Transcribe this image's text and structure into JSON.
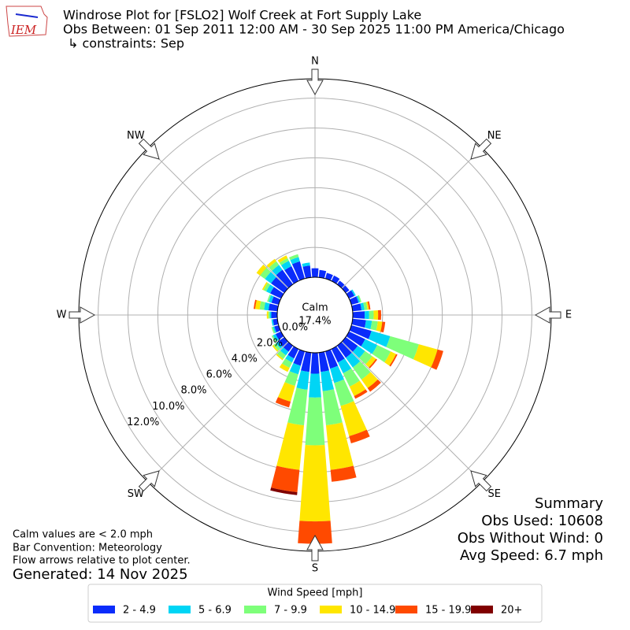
{
  "chart_data": {
    "type": "windrose",
    "logo": "IEM",
    "title": "Windrose Plot for [FSLO2] Wolf Creek at Fort Supply Lake",
    "subtitle": "Obs Between: 01 Sep 2011 12:00 AM - 30 Sep 2025 11:00 PM America/Chicago",
    "constraints": "↳ constraints: Sep",
    "calm_label": "Calm",
    "calm_value": 17.4,
    "calm_value_label": "17.4%",
    "x": [
      0,
      10,
      20,
      30,
      40,
      50,
      60,
      70,
      80,
      90,
      100,
      110,
      120,
      130,
      140,
      150,
      160,
      170,
      180,
      190,
      200,
      210,
      220,
      230,
      240,
      250,
      260,
      270,
      280,
      290,
      300,
      310,
      320,
      330,
      340,
      350
    ],
    "xlim": [
      0,
      360
    ],
    "xticks": [
      {
        "value": 0,
        "label": "N"
      },
      {
        "value": 45,
        "label": "NE"
      },
      {
        "value": 90,
        "label": "E"
      },
      {
        "value": 135,
        "label": "SE"
      },
      {
        "value": 180,
        "label": "S"
      },
      {
        "value": 225,
        "label": "SW"
      },
      {
        "value": 270,
        "label": "W"
      },
      {
        "value": 315,
        "label": "NW"
      }
    ],
    "ylim": [
      0,
      13.3
    ],
    "yticks": [
      {
        "value": 0,
        "label": "0.0%"
      },
      {
        "value": 2,
        "label": "2.0%"
      },
      {
        "value": 4,
        "label": "4.0%"
      },
      {
        "value": 6,
        "label": "6.0%"
      },
      {
        "value": 8,
        "label": "8.0%"
      },
      {
        "value": 10,
        "label": "10.0%"
      },
      {
        "value": 12,
        "label": "12.0%"
      }
    ],
    "grid": true,
    "legend_title": "Wind Speed [mph]",
    "series": [
      {
        "name": "2 - 4.9",
        "color": "#0a2cfb",
        "values": [
          0.6,
          0.5,
          0.4,
          0.4,
          0.3,
          0.3,
          0.4,
          0.5,
          0.6,
          0.8,
          0.9,
          1.4,
          1.2,
          1.0,
          1.0,
          1.0,
          1.2,
          1.3,
          1.4,
          1.3,
          1.0,
          0.7,
          0.5,
          0.5,
          0.4,
          0.3,
          0.3,
          0.4,
          0.6,
          0.5,
          0.8,
          1.1,
          1.2,
          1.1,
          1.2,
          0.8
        ]
      },
      {
        "name": "5 - 6.9",
        "color": "#00d5f5",
        "values": [
          0,
          0,
          0,
          0,
          0,
          0,
          0.1,
          0.1,
          0.2,
          0.3,
          0.4,
          1.3,
          0.9,
          0.6,
          0.8,
          0.8,
          1.0,
          1.3,
          1.6,
          1.2,
          0.6,
          0.3,
          0.3,
          0.2,
          0.2,
          0.1,
          0.1,
          0.1,
          0.3,
          0.2,
          0.3,
          0.5,
          0.4,
          0.4,
          0.3,
          0.2
        ]
      },
      {
        "name": "7 - 9.9",
        "color": "#7eff7a",
        "values": [
          0,
          0,
          0,
          0,
          0,
          0,
          0,
          0.1,
          0.2,
          0.3,
          0.4,
          2.0,
          1.0,
          0.6,
          1.0,
          1.0,
          1.6,
          2.3,
          3.2,
          2.4,
          0.8,
          0.4,
          0.3,
          0.2,
          0.1,
          0.1,
          0,
          0.1,
          0.3,
          0.1,
          0.2,
          0.4,
          0.3,
          0.2,
          0.2,
          0
        ]
      },
      {
        "name": "10 - 14.9",
        "color": "#ffe600",
        "values": [
          0,
          0,
          0,
          0,
          0,
          0,
          0,
          0,
          0.1,
          0.3,
          0.3,
          1.3,
          0.4,
          0.3,
          0.7,
          0.7,
          2.1,
          3.0,
          5.1,
          3.0,
          1.1,
          0.3,
          0.1,
          0.1,
          0,
          0,
          0,
          0.1,
          0.3,
          0,
          0.1,
          0.3,
          0.2,
          0.2,
          0,
          0
        ]
      },
      {
        "name": "15 - 19.9",
        "color": "#ff4a00",
        "values": [
          0,
          0,
          0,
          0,
          0,
          0,
          0,
          0,
          0.1,
          0.2,
          0.2,
          0.4,
          0.1,
          0.1,
          0.3,
          0.2,
          0.5,
          0.8,
          1.5,
          1.5,
          0.4,
          0,
          0,
          0,
          0,
          0,
          0,
          0,
          0.1,
          0,
          0,
          0,
          0,
          0,
          0,
          0
        ]
      },
      {
        "name": "20+",
        "color": "#800000",
        "values": [
          0,
          0,
          0,
          0,
          0,
          0,
          0,
          0,
          0,
          0,
          0,
          0,
          0,
          0,
          0,
          0,
          0,
          0,
          0,
          0.2,
          0,
          0,
          0,
          0,
          0,
          0,
          0,
          0,
          0,
          0,
          0,
          0,
          0,
          0,
          0,
          0
        ]
      }
    ],
    "summary": [
      "Summary",
      "Obs Used: 10608",
      "Obs Without Wind: 0",
      "Avg Speed: 6.7 mph"
    ],
    "notes": [
      "Calm values are < 2.0 mph",
      "Bar Convention: Meteorology",
      "Flow arrows relative to plot center."
    ],
    "generated": "Generated: 14 Nov 2025"
  }
}
